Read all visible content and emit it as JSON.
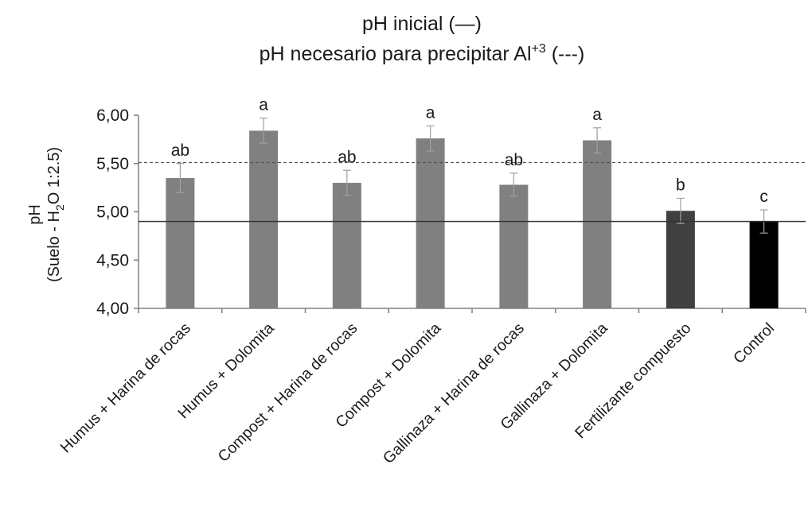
{
  "chart_data": {
    "type": "bar",
    "title_line1": "pH inicial (—)",
    "title_line2": "pH necesario para precipitar Al",
    "title_line2_sup": "+3",
    "title_line2_end": " (---)",
    "ylabel_line1": "pH",
    "ylabel_line2": "(Suelo - H",
    "ylabel_line2_sub": "2",
    "ylabel_line2_end": "O 1:2.5)",
    "ylim": [
      4.0,
      6.0
    ],
    "yticks": [
      "4,00",
      "4,50",
      "5,00",
      "5,50",
      "6,00"
    ],
    "ytick_values": [
      4.0,
      4.5,
      5.0,
      5.5,
      6.0
    ],
    "categories": [
      "Humus + Harina de rocas",
      "Humus + Dolomita",
      "Compost + Harina de rocas",
      "Compost + Dolomita",
      "Gallinaza + Harina de rocas",
      "Gallinaza + Dolomita",
      "Fertilizante compuesto",
      "Control"
    ],
    "values": [
      5.35,
      5.84,
      5.3,
      5.76,
      5.28,
      5.74,
      5.01,
      4.9
    ],
    "errors": [
      0.15,
      0.13,
      0.13,
      0.13,
      0.12,
      0.13,
      0.13,
      0.12
    ],
    "significance": [
      "ab",
      "a",
      "ab",
      "a",
      "ab",
      "a",
      "b",
      "c"
    ],
    "bar_colors": [
      "#808080",
      "#808080",
      "#808080",
      "#808080",
      "#808080",
      "#808080",
      "#404040",
      "#000000"
    ],
    "reference_lines": [
      {
        "label": "pH inicial",
        "value": 4.9,
        "style": "solid"
      },
      {
        "label": "pH necesario para precipitar Al+3",
        "value": 5.51,
        "style": "dashed"
      }
    ],
    "grid": false,
    "legend": "none"
  }
}
